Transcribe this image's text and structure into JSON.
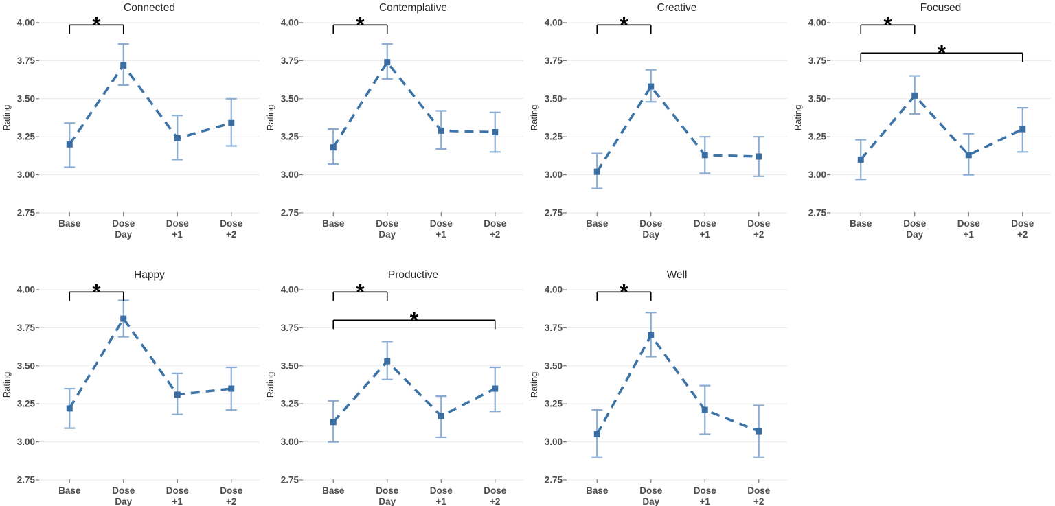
{
  "figure": {
    "background_color": "#ffffff",
    "description": "Faceted line chart of subjective ratings across dosing timeline"
  },
  "chart_data": {
    "type": "line",
    "layout": {
      "rows": 2,
      "cols": 4,
      "empty_cells": [
        "row2-col4"
      ],
      "grid": "horizontal-only",
      "legend": "none"
    },
    "ylabel": "Rating",
    "ylim": [
      2.75,
      4.0
    ],
    "yticks": [
      "2.75",
      "3.00",
      "3.25",
      "3.50",
      "3.75",
      "4.00"
    ],
    "categories": [
      [
        "Base"
      ],
      [
        "Dose",
        "Day"
      ],
      [
        "Dose",
        "+1"
      ],
      [
        "Dose",
        "+2"
      ]
    ],
    "colors": {
      "line": "#3d74a8",
      "point": "#3a6da1",
      "error": "#8badd3",
      "grid": "#e8e8e8",
      "tick": "#7a7a7a",
      "axis_text": "#4d4d4d",
      "title": "#262626",
      "bracket": "#000000"
    },
    "panels": [
      {
        "title": "Connected",
        "means": [
          3.2,
          3.72,
          3.24,
          3.34
        ],
        "lower": [
          3.05,
          3.59,
          3.1,
          3.19
        ],
        "upper": [
          3.34,
          3.86,
          3.39,
          3.5
        ],
        "sig": [
          {
            "from": 0,
            "to": 1,
            "y": 3.985,
            "label": "*"
          }
        ]
      },
      {
        "title": "Contemplative",
        "means": [
          3.18,
          3.74,
          3.29,
          3.28
        ],
        "lower": [
          3.07,
          3.63,
          3.17,
          3.15
        ],
        "upper": [
          3.3,
          3.86,
          3.42,
          3.41
        ],
        "sig": [
          {
            "from": 0,
            "to": 1,
            "y": 3.985,
            "label": "*"
          }
        ]
      },
      {
        "title": "Creative",
        "means": [
          3.02,
          3.58,
          3.13,
          3.12
        ],
        "lower": [
          2.91,
          3.48,
          3.01,
          2.99
        ],
        "upper": [
          3.14,
          3.69,
          3.25,
          3.25
        ],
        "sig": [
          {
            "from": 0,
            "to": 1,
            "y": 3.985,
            "label": "*"
          }
        ]
      },
      {
        "title": "Focused",
        "means": [
          3.1,
          3.52,
          3.13,
          3.3
        ],
        "lower": [
          2.97,
          3.4,
          3.0,
          3.15
        ],
        "upper": [
          3.23,
          3.65,
          3.27,
          3.44
        ],
        "sig": [
          {
            "from": 0,
            "to": 1,
            "y": 3.985,
            "label": "*"
          },
          {
            "from": 0,
            "to": 3,
            "y": 3.8,
            "label": "*"
          }
        ]
      },
      {
        "title": "Happy",
        "means": [
          3.22,
          3.81,
          3.31,
          3.35
        ],
        "lower": [
          3.09,
          3.69,
          3.18,
          3.21
        ],
        "upper": [
          3.35,
          3.93,
          3.45,
          3.49
        ],
        "sig": [
          {
            "from": 0,
            "to": 1,
            "y": 3.985,
            "label": "*"
          }
        ]
      },
      {
        "title": "Productive",
        "means": [
          3.13,
          3.53,
          3.17,
          3.35
        ],
        "lower": [
          3.0,
          3.41,
          3.03,
          3.2
        ],
        "upper": [
          3.27,
          3.66,
          3.3,
          3.49
        ],
        "sig": [
          {
            "from": 0,
            "to": 1,
            "y": 3.985,
            "label": "*"
          },
          {
            "from": 0,
            "to": 3,
            "y": 3.8,
            "label": "*"
          }
        ]
      },
      {
        "title": "Well",
        "means": [
          3.05,
          3.7,
          3.21,
          3.07
        ],
        "lower": [
          2.9,
          3.56,
          3.05,
          2.9
        ],
        "upper": [
          3.21,
          3.85,
          3.37,
          3.24
        ],
        "sig": [
          {
            "from": 0,
            "to": 1,
            "y": 3.985,
            "label": "*"
          }
        ]
      }
    ]
  }
}
